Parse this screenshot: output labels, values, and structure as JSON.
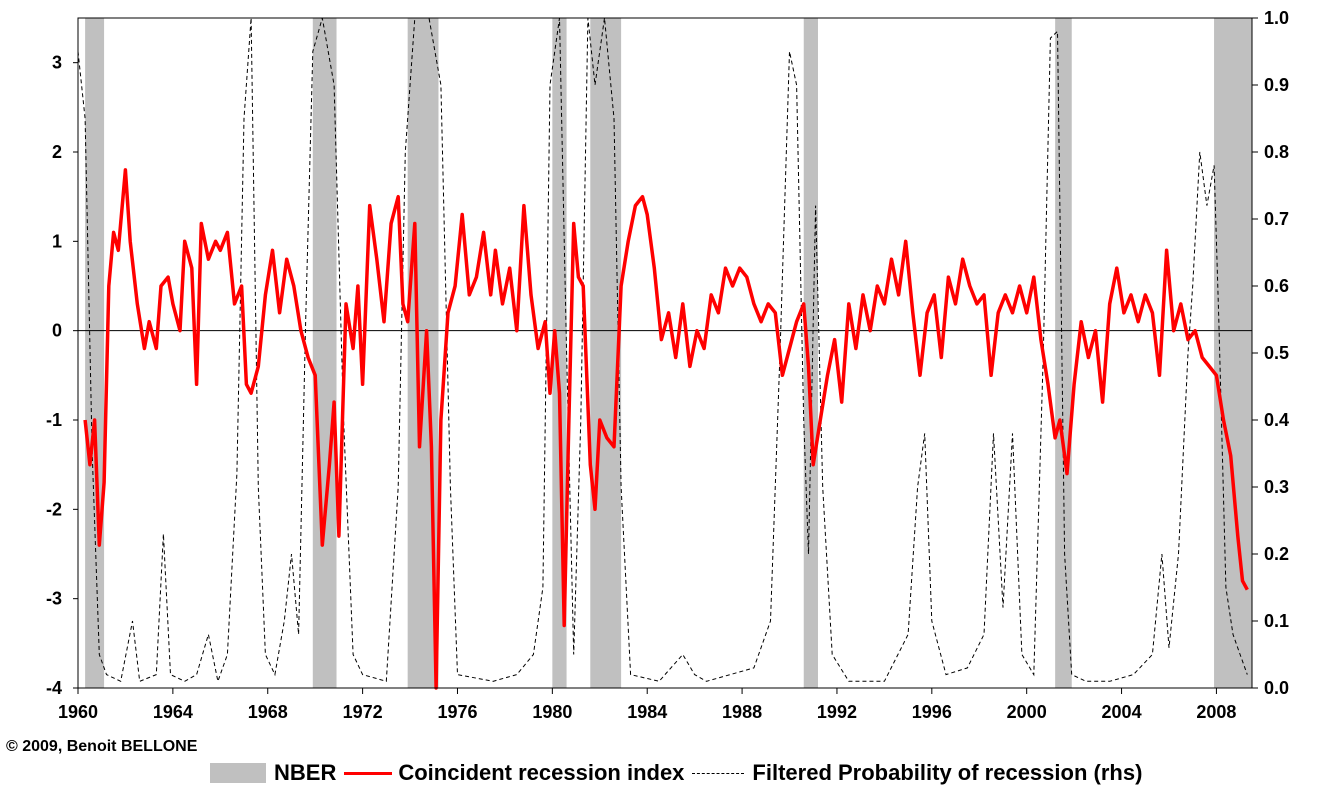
{
  "copyright": "© 2009, Benoit BELLONE",
  "chart_data": {
    "type": "line",
    "x_range": [
      1960,
      2009.5
    ],
    "x_ticks": [
      "1960",
      "1964",
      "1968",
      "1972",
      "1976",
      "1980",
      "1984",
      "1988",
      "1992",
      "1996",
      "2000",
      "2004",
      "2008"
    ],
    "y_left": {
      "range": [
        -4,
        3.5
      ],
      "ticks": [
        "3",
        "2",
        "1",
        "0",
        "-1",
        "-2",
        "-3",
        "-4"
      ]
    },
    "y_right": {
      "range": [
        0.0,
        1.0
      ],
      "ticks": [
        "1.0",
        "0.9",
        "0.8",
        "0.7",
        "0.6",
        "0.5",
        "0.4",
        "0.3",
        "0.2",
        "0.1",
        "0.0"
      ]
    },
    "colors": {
      "nber": "#c0c0c0",
      "index": "#ff0000",
      "probability": "#000000"
    },
    "legend": [
      {
        "label": "NBER",
        "style": "bar"
      },
      {
        "label": "Coincident recession index",
        "style": "solid-red"
      },
      {
        "label": "Filtered Probability of recession (rhs)",
        "style": "dashed-black"
      }
    ],
    "nber_recessions": [
      [
        1960.3,
        1961.1
      ],
      [
        1969.9,
        1970.9
      ],
      [
        1973.9,
        1975.2
      ],
      [
        1980.0,
        1980.6
      ],
      [
        1981.6,
        1982.9
      ],
      [
        1990.6,
        1991.2
      ],
      [
        2001.2,
        2001.9
      ],
      [
        2007.9,
        2009.5
      ]
    ],
    "series": [
      {
        "name": "Coincident recession index",
        "axis": "left",
        "points": [
          [
            1960.3,
            -1.0
          ],
          [
            1960.5,
            -1.5
          ],
          [
            1960.7,
            -1.0
          ],
          [
            1960.9,
            -2.4
          ],
          [
            1961.1,
            -1.7
          ],
          [
            1961.3,
            0.5
          ],
          [
            1961.5,
            1.1
          ],
          [
            1961.7,
            0.9
          ],
          [
            1962.0,
            1.8
          ],
          [
            1962.2,
            1.0
          ],
          [
            1962.5,
            0.3
          ],
          [
            1962.8,
            -0.2
          ],
          [
            1963.0,
            0.1
          ],
          [
            1963.3,
            -0.2
          ],
          [
            1963.5,
            0.5
          ],
          [
            1963.8,
            0.6
          ],
          [
            1964.0,
            0.3
          ],
          [
            1964.3,
            0.0
          ],
          [
            1964.5,
            1.0
          ],
          [
            1964.8,
            0.7
          ],
          [
            1965.0,
            -0.6
          ],
          [
            1965.2,
            1.2
          ],
          [
            1965.5,
            0.8
          ],
          [
            1965.8,
            1.0
          ],
          [
            1966.0,
            0.9
          ],
          [
            1966.3,
            1.1
          ],
          [
            1966.6,
            0.3
          ],
          [
            1966.9,
            0.5
          ],
          [
            1967.1,
            -0.6
          ],
          [
            1967.3,
            -0.7
          ],
          [
            1967.6,
            -0.4
          ],
          [
            1967.9,
            0.4
          ],
          [
            1968.2,
            0.9
          ],
          [
            1968.5,
            0.2
          ],
          [
            1968.8,
            0.8
          ],
          [
            1969.1,
            0.5
          ],
          [
            1969.4,
            0.0
          ],
          [
            1969.7,
            -0.3
          ],
          [
            1970.0,
            -0.5
          ],
          [
            1970.3,
            -2.4
          ],
          [
            1970.6,
            -1.5
          ],
          [
            1970.8,
            -0.8
          ],
          [
            1971.0,
            -2.3
          ],
          [
            1971.3,
            0.3
          ],
          [
            1971.6,
            -0.2
          ],
          [
            1971.8,
            0.5
          ],
          [
            1972.0,
            -0.6
          ],
          [
            1972.3,
            1.4
          ],
          [
            1972.6,
            0.8
          ],
          [
            1972.9,
            0.1
          ],
          [
            1973.2,
            1.2
          ],
          [
            1973.5,
            1.5
          ],
          [
            1973.7,
            0.3
          ],
          [
            1973.9,
            0.1
          ],
          [
            1974.2,
            1.2
          ],
          [
            1974.4,
            -1.3
          ],
          [
            1974.7,
            0.0
          ],
          [
            1974.9,
            -1.3
          ],
          [
            1975.1,
            -4.0
          ],
          [
            1975.3,
            -1.0
          ],
          [
            1975.6,
            0.2
          ],
          [
            1975.9,
            0.5
          ],
          [
            1976.2,
            1.3
          ],
          [
            1976.5,
            0.4
          ],
          [
            1976.8,
            0.6
          ],
          [
            1977.1,
            1.1
          ],
          [
            1977.4,
            0.4
          ],
          [
            1977.6,
            0.9
          ],
          [
            1977.9,
            0.3
          ],
          [
            1978.2,
            0.7
          ],
          [
            1978.5,
            0.0
          ],
          [
            1978.8,
            1.4
          ],
          [
            1979.1,
            0.4
          ],
          [
            1979.4,
            -0.2
          ],
          [
            1979.7,
            0.1
          ],
          [
            1979.9,
            -0.7
          ],
          [
            1980.1,
            0.0
          ],
          [
            1980.3,
            -0.7
          ],
          [
            1980.5,
            -3.3
          ],
          [
            1980.7,
            -1.0
          ],
          [
            1980.9,
            1.2
          ],
          [
            1981.1,
            0.6
          ],
          [
            1981.3,
            0.5
          ],
          [
            1981.6,
            -1.5
          ],
          [
            1981.8,
            -2.0
          ],
          [
            1982.0,
            -1.0
          ],
          [
            1982.3,
            -1.2
          ],
          [
            1982.6,
            -1.3
          ],
          [
            1982.9,
            0.5
          ],
          [
            1983.2,
            1.0
          ],
          [
            1983.5,
            1.4
          ],
          [
            1983.8,
            1.5
          ],
          [
            1984.0,
            1.3
          ],
          [
            1984.3,
            0.7
          ],
          [
            1984.6,
            -0.1
          ],
          [
            1984.9,
            0.2
          ],
          [
            1985.2,
            -0.3
          ],
          [
            1985.5,
            0.3
          ],
          [
            1985.8,
            -0.4
          ],
          [
            1986.1,
            0.0
          ],
          [
            1986.4,
            -0.2
          ],
          [
            1986.7,
            0.4
          ],
          [
            1987.0,
            0.2
          ],
          [
            1987.3,
            0.7
          ],
          [
            1987.6,
            0.5
          ],
          [
            1987.9,
            0.7
          ],
          [
            1988.2,
            0.6
          ],
          [
            1988.5,
            0.3
          ],
          [
            1988.8,
            0.1
          ],
          [
            1989.1,
            0.3
          ],
          [
            1989.4,
            0.2
          ],
          [
            1989.7,
            -0.5
          ],
          [
            1990.0,
            -0.2
          ],
          [
            1990.3,
            0.1
          ],
          [
            1990.6,
            0.3
          ],
          [
            1990.8,
            -0.4
          ],
          [
            1991.0,
            -1.5
          ],
          [
            1991.3,
            -1.0
          ],
          [
            1991.6,
            -0.5
          ],
          [
            1991.9,
            -0.1
          ],
          [
            1992.2,
            -0.8
          ],
          [
            1992.5,
            0.3
          ],
          [
            1992.8,
            -0.2
          ],
          [
            1993.1,
            0.4
          ],
          [
            1993.4,
            0.0
          ],
          [
            1993.7,
            0.5
          ],
          [
            1994.0,
            0.3
          ],
          [
            1994.3,
            0.8
          ],
          [
            1994.6,
            0.4
          ],
          [
            1994.9,
            1.0
          ],
          [
            1995.2,
            0.2
          ],
          [
            1995.5,
            -0.5
          ],
          [
            1995.8,
            0.2
          ],
          [
            1996.1,
            0.4
          ],
          [
            1996.4,
            -0.3
          ],
          [
            1996.7,
            0.6
          ],
          [
            1997.0,
            0.3
          ],
          [
            1997.3,
            0.8
          ],
          [
            1997.6,
            0.5
          ],
          [
            1997.9,
            0.3
          ],
          [
            1998.2,
            0.4
          ],
          [
            1998.5,
            -0.5
          ],
          [
            1998.8,
            0.2
          ],
          [
            1999.1,
            0.4
          ],
          [
            1999.4,
            0.2
          ],
          [
            1999.7,
            0.5
          ],
          [
            2000.0,
            0.2
          ],
          [
            2000.3,
            0.6
          ],
          [
            2000.6,
            -0.1
          ],
          [
            2000.9,
            -0.6
          ],
          [
            2001.2,
            -1.2
          ],
          [
            2001.4,
            -1.0
          ],
          [
            2001.7,
            -1.6
          ],
          [
            2002.0,
            -0.6
          ],
          [
            2002.3,
            0.1
          ],
          [
            2002.6,
            -0.3
          ],
          [
            2002.9,
            0.0
          ],
          [
            2003.2,
            -0.8
          ],
          [
            2003.5,
            0.3
          ],
          [
            2003.8,
            0.7
          ],
          [
            2004.1,
            0.2
          ],
          [
            2004.4,
            0.4
          ],
          [
            2004.7,
            0.1
          ],
          [
            2005.0,
            0.4
          ],
          [
            2005.3,
            0.2
          ],
          [
            2005.6,
            -0.5
          ],
          [
            2005.9,
            0.9
          ],
          [
            2006.2,
            0.0
          ],
          [
            2006.5,
            0.3
          ],
          [
            2006.8,
            -0.1
          ],
          [
            2007.1,
            0.0
          ],
          [
            2007.4,
            -0.3
          ],
          [
            2007.7,
            -0.4
          ],
          [
            2008.0,
            -0.5
          ],
          [
            2008.3,
            -1.0
          ],
          [
            2008.6,
            -1.4
          ],
          [
            2008.9,
            -2.3
          ],
          [
            2009.1,
            -2.8
          ],
          [
            2009.3,
            -2.9
          ]
        ]
      },
      {
        "name": "Filtered Probability of recession (rhs)",
        "axis": "right",
        "points": [
          [
            1960.0,
            0.95
          ],
          [
            1960.3,
            0.85
          ],
          [
            1960.6,
            0.35
          ],
          [
            1960.9,
            0.05
          ],
          [
            1961.2,
            0.02
          ],
          [
            1961.8,
            0.01
          ],
          [
            1962.3,
            0.1
          ],
          [
            1962.6,
            0.01
          ],
          [
            1963.3,
            0.02
          ],
          [
            1963.6,
            0.23
          ],
          [
            1963.9,
            0.02
          ],
          [
            1964.5,
            0.01
          ],
          [
            1965.0,
            0.02
          ],
          [
            1965.5,
            0.08
          ],
          [
            1965.9,
            0.01
          ],
          [
            1966.3,
            0.05
          ],
          [
            1966.7,
            0.32
          ],
          [
            1967.0,
            0.85
          ],
          [
            1967.3,
            1.0
          ],
          [
            1967.6,
            0.3
          ],
          [
            1967.9,
            0.05
          ],
          [
            1968.3,
            0.02
          ],
          [
            1968.7,
            0.1
          ],
          [
            1969.0,
            0.2
          ],
          [
            1969.3,
            0.08
          ],
          [
            1969.6,
            0.55
          ],
          [
            1969.9,
            0.95
          ],
          [
            1970.3,
            1.0
          ],
          [
            1970.8,
            0.9
          ],
          [
            1971.2,
            0.4
          ],
          [
            1971.6,
            0.05
          ],
          [
            1972.0,
            0.02
          ],
          [
            1973.0,
            0.01
          ],
          [
            1973.5,
            0.3
          ],
          [
            1973.8,
            0.8
          ],
          [
            1974.2,
            1.0
          ],
          [
            1974.8,
            1.0
          ],
          [
            1975.3,
            0.9
          ],
          [
            1975.7,
            0.3
          ],
          [
            1976.0,
            0.02
          ],
          [
            1977.5,
            0.01
          ],
          [
            1978.5,
            0.02
          ],
          [
            1979.2,
            0.05
          ],
          [
            1979.6,
            0.15
          ],
          [
            1979.9,
            0.9
          ],
          [
            1980.3,
            1.0
          ],
          [
            1980.6,
            0.5
          ],
          [
            1980.9,
            0.05
          ],
          [
            1981.2,
            0.4
          ],
          [
            1981.5,
            1.0
          ],
          [
            1981.8,
            0.9
          ],
          [
            1982.2,
            1.0
          ],
          [
            1982.6,
            0.85
          ],
          [
            1982.9,
            0.3
          ],
          [
            1983.3,
            0.02
          ],
          [
            1984.5,
            0.01
          ],
          [
            1985.0,
            0.03
          ],
          [
            1985.5,
            0.05
          ],
          [
            1986.0,
            0.02
          ],
          [
            1986.5,
            0.01
          ],
          [
            1987.5,
            0.02
          ],
          [
            1988.5,
            0.03
          ],
          [
            1989.2,
            0.1
          ],
          [
            1989.6,
            0.5
          ],
          [
            1990.0,
            0.95
          ],
          [
            1990.3,
            0.9
          ],
          [
            1990.6,
            0.4
          ],
          [
            1990.8,
            0.2
          ],
          [
            1991.1,
            0.72
          ],
          [
            1991.4,
            0.3
          ],
          [
            1991.8,
            0.05
          ],
          [
            1992.5,
            0.01
          ],
          [
            1994.0,
            0.01
          ],
          [
            1995.0,
            0.08
          ],
          [
            1995.4,
            0.3
          ],
          [
            1995.7,
            0.38
          ],
          [
            1996.0,
            0.1
          ],
          [
            1996.6,
            0.02
          ],
          [
            1997.5,
            0.03
          ],
          [
            1998.2,
            0.08
          ],
          [
            1998.6,
            0.38
          ],
          [
            1999.0,
            0.12
          ],
          [
            1999.4,
            0.38
          ],
          [
            1999.8,
            0.05
          ],
          [
            2000.3,
            0.02
          ],
          [
            2000.7,
            0.5
          ],
          [
            2001.0,
            0.97
          ],
          [
            2001.3,
            0.98
          ],
          [
            2001.6,
            0.2
          ],
          [
            2001.9,
            0.02
          ],
          [
            2002.5,
            0.01
          ],
          [
            2003.5,
            0.01
          ],
          [
            2004.5,
            0.02
          ],
          [
            2005.3,
            0.05
          ],
          [
            2005.7,
            0.2
          ],
          [
            2006.0,
            0.06
          ],
          [
            2006.4,
            0.2
          ],
          [
            2006.8,
            0.5
          ],
          [
            2007.0,
            0.6
          ],
          [
            2007.3,
            0.8
          ],
          [
            2007.6,
            0.72
          ],
          [
            2007.9,
            0.78
          ],
          [
            2008.1,
            0.55
          ],
          [
            2008.4,
            0.15
          ],
          [
            2008.7,
            0.08
          ],
          [
            2009.0,
            0.05
          ],
          [
            2009.3,
            0.02
          ]
        ]
      }
    ]
  }
}
